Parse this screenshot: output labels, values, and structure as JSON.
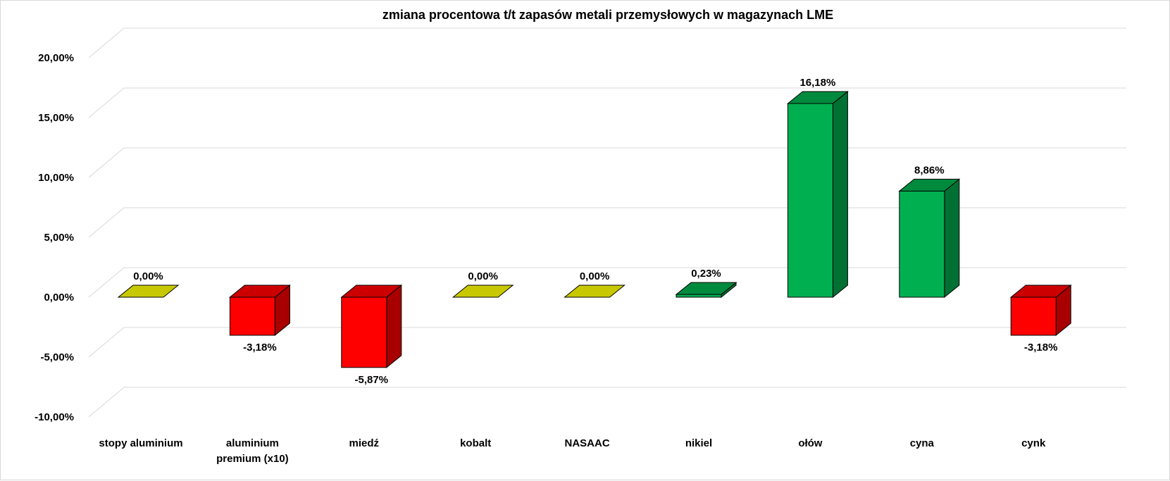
{
  "chart_data": {
    "type": "bar",
    "title": "zmiana procentowa t/t zapasów metali przemysłowych w magazynach LME",
    "categories": [
      "stopy aluminium",
      "aluminium premium (x10)",
      "miedź",
      "kobalt",
      "NASAAC",
      "nikiel",
      "ołów",
      "cyna",
      "cynk"
    ],
    "values": [
      0.0,
      -3.18,
      -5.87,
      0.0,
      0.0,
      0.23,
      16.18,
      8.86,
      -3.18
    ],
    "data_labels": [
      "0,00%",
      "-3,18%",
      "-5,87%",
      "0,00%",
      "0,00%",
      "0,23%",
      "16,18%",
      "8,86%",
      "-3,18%"
    ],
    "y_ticks": [
      -10,
      -5,
      0,
      5,
      10,
      15,
      20
    ],
    "y_tick_labels": [
      "-10,00%",
      "-5,00%",
      "0,00%",
      "5,00%",
      "10,00%",
      "15,00%",
      "20,00%"
    ],
    "ylim": [
      -10,
      20
    ],
    "xlabel": "",
    "ylabel": "",
    "grid": true,
    "legend": "none",
    "style": "3d-column",
    "colors": {
      "positive_front": "#00b050",
      "positive_side": "#007033",
      "positive_top": "#008a3e",
      "negative_front": "#ff0000",
      "negative_side": "#a80000",
      "negative_top": "#cc0000",
      "zero_top": "#c8c800",
      "gridline": "#d9d9d9"
    }
  }
}
